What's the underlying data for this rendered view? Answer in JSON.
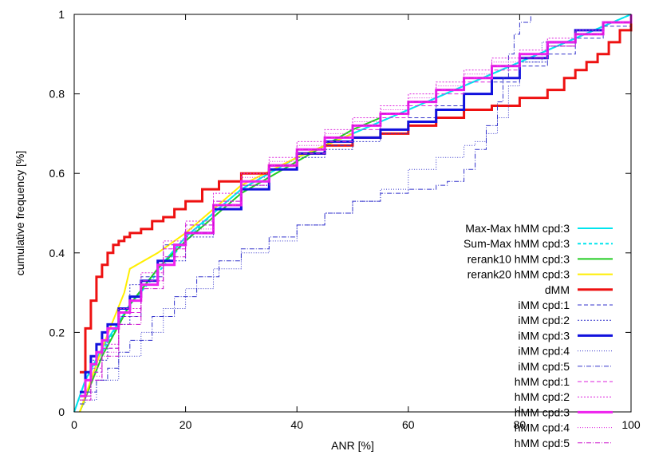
{
  "chart_data": {
    "type": "line",
    "title": "",
    "xlabel": "ANR [%]",
    "ylabel": "cumulative frequency [%]",
    "xlim": [
      0,
      100
    ],
    "ylim": [
      0,
      1
    ],
    "xticks": [
      "0",
      "20",
      "40",
      "60",
      "80",
      "100"
    ],
    "yticks": [
      "0",
      "0.2",
      "0.4",
      "0.6",
      "0.8",
      "1"
    ],
    "grid": false,
    "legend_position": "right",
    "series": [
      {
        "name": "Max-Max hMM cpd:3",
        "color": "#00e5ee",
        "dash": "",
        "width": 2,
        "x": [
          0,
          2,
          5,
          10,
          15,
          20,
          25,
          30,
          40,
          50,
          60,
          70,
          80,
          90,
          100
        ],
        "y": [
          0,
          0.08,
          0.16,
          0.27,
          0.36,
          0.44,
          0.5,
          0.56,
          0.64,
          0.7,
          0.76,
          0.82,
          0.88,
          0.94,
          1
        ]
      },
      {
        "name": "Sum-Max hMM cpd:3",
        "color": "#00e5ee",
        "dash": "4,3",
        "width": 2,
        "x": [
          0,
          2,
          5,
          10,
          15,
          20,
          25,
          30,
          40,
          50,
          60,
          70,
          80,
          90,
          100
        ],
        "y": [
          0,
          0.08,
          0.15,
          0.27,
          0.35,
          0.43,
          0.5,
          0.56,
          0.64,
          0.7,
          0.76,
          0.82,
          0.88,
          0.94,
          1
        ]
      },
      {
        "name": "rerank10 hMM cpd:3",
        "color": "#22cc22",
        "dash": "",
        "width": 2,
        "x": [
          1,
          5,
          10,
          15,
          20,
          25,
          30,
          40,
          50,
          55
        ],
        "y": [
          0,
          0.14,
          0.27,
          0.36,
          0.43,
          0.49,
          0.55,
          0.63,
          0.71,
          0.74
        ]
      },
      {
        "name": "rerank20 hMM cpd:3",
        "color": "#ffee00",
        "dash": "",
        "width": 2,
        "x": [
          1,
          5,
          9,
          10,
          15,
          20,
          25,
          30,
          40,
          50
        ],
        "y": [
          0,
          0.16,
          0.3,
          0.36,
          0.4,
          0.45,
          0.51,
          0.57,
          0.64,
          0.7
        ]
      },
      {
        "name": "dMM",
        "color": "#ee1111",
        "dash": "",
        "width": 3,
        "step": true,
        "x": [
          1,
          2,
          3,
          4,
          5,
          6,
          7,
          8,
          9,
          10,
          12,
          14,
          16,
          18,
          20,
          23,
          26,
          30,
          35,
          40,
          45,
          50,
          55,
          60,
          65,
          70,
          75,
          80,
          85,
          88,
          90,
          92,
          94,
          96,
          98,
          100
        ],
        "y": [
          0.1,
          0.21,
          0.28,
          0.34,
          0.37,
          0.4,
          0.42,
          0.43,
          0.44,
          0.45,
          0.46,
          0.48,
          0.49,
          0.51,
          0.53,
          0.56,
          0.58,
          0.6,
          0.62,
          0.65,
          0.67,
          0.69,
          0.7,
          0.72,
          0.74,
          0.76,
          0.77,
          0.79,
          0.81,
          0.84,
          0.86,
          0.88,
          0.9,
          0.93,
          0.96,
          1
        ]
      },
      {
        "name": "iMM cpd:1",
        "color": "#3333cc",
        "dash": "5,3",
        "width": 1,
        "step": true,
        "x": [
          1,
          3,
          5,
          8,
          12,
          16,
          20,
          25,
          30,
          35,
          40,
          45,
          50,
          55,
          60,
          65,
          70,
          75,
          80,
          85,
          90,
          95,
          100
        ],
        "y": [
          0.04,
          0.1,
          0.16,
          0.24,
          0.34,
          0.42,
          0.47,
          0.53,
          0.58,
          0.62,
          0.65,
          0.67,
          0.69,
          0.71,
          0.74,
          0.77,
          0.8,
          0.83,
          0.87,
          0.9,
          0.94,
          0.97,
          1
        ]
      },
      {
        "name": "iMM cpd:2",
        "color": "#3333cc",
        "dash": "2,2",
        "width": 1,
        "step": true,
        "x": [
          1,
          3,
          6,
          10,
          15,
          20,
          25,
          30,
          35,
          40,
          45,
          50,
          55,
          60,
          65,
          70,
          75,
          80,
          85,
          90,
          95,
          100
        ],
        "y": [
          0.05,
          0.13,
          0.22,
          0.32,
          0.38,
          0.44,
          0.51,
          0.57,
          0.61,
          0.64,
          0.66,
          0.68,
          0.7,
          0.73,
          0.76,
          0.8,
          0.84,
          0.88,
          0.92,
          0.96,
          0.98,
          1
        ]
      },
      {
        "name": "iMM cpd:3",
        "color": "#1111dd",
        "dash": "",
        "width": 3,
        "step": true,
        "x": [
          1,
          2,
          3,
          4,
          5,
          6,
          8,
          10,
          12,
          15,
          18,
          20,
          25,
          30,
          35,
          40,
          45,
          50,
          55,
          60,
          65,
          70,
          75,
          80,
          85,
          90,
          95,
          100
        ],
        "y": [
          0.05,
          0.1,
          0.14,
          0.17,
          0.2,
          0.22,
          0.26,
          0.29,
          0.33,
          0.38,
          0.42,
          0.45,
          0.51,
          0.56,
          0.61,
          0.65,
          0.68,
          0.69,
          0.71,
          0.73,
          0.76,
          0.8,
          0.84,
          0.89,
          0.93,
          0.96,
          0.98,
          1
        ]
      },
      {
        "name": "iMM cpd:4",
        "color": "#3333cc",
        "dash": "1,2",
        "width": 1,
        "step": true,
        "x": [
          1,
          4,
          8,
          12,
          16,
          20,
          25,
          30,
          35,
          40,
          45,
          50,
          55,
          60,
          65,
          70,
          72,
          74,
          76,
          78,
          80,
          84,
          90,
          95,
          100
        ],
        "y": [
          0.03,
          0.08,
          0.14,
          0.2,
          0.26,
          0.31,
          0.36,
          0.4,
          0.43,
          0.47,
          0.5,
          0.53,
          0.56,
          0.61,
          0.64,
          0.67,
          0.68,
          0.7,
          0.74,
          0.82,
          0.88,
          0.93,
          0.96,
          0.98,
          1
        ]
      },
      {
        "name": "iMM cpd:5",
        "color": "#3333cc",
        "dash": "6,2,1,2",
        "width": 1,
        "step": true,
        "x": [
          1,
          2,
          4,
          6,
          8,
          10,
          14,
          18,
          22,
          26,
          30,
          35,
          40,
          45,
          50,
          55,
          60,
          65,
          67,
          70,
          72,
          74,
          76,
          77,
          78,
          79,
          80,
          82,
          85,
          90,
          95,
          100
        ],
        "y": [
          0.02,
          0.05,
          0.08,
          0.11,
          0.15,
          0.18,
          0.24,
          0.29,
          0.34,
          0.38,
          0.41,
          0.44,
          0.47,
          0.5,
          0.53,
          0.55,
          0.56,
          0.57,
          0.58,
          0.61,
          0.66,
          0.72,
          0.78,
          0.84,
          0.9,
          0.95,
          0.98,
          1,
          1,
          1,
          1,
          1
        ]
      },
      {
        "name": "hMM cpd:1",
        "color": "#dd22dd",
        "dash": "5,3",
        "width": 1,
        "step": true,
        "x": [
          1,
          3,
          5,
          8,
          12,
          16,
          20,
          25,
          30,
          35,
          40,
          45,
          50,
          55,
          60,
          65,
          70,
          75,
          80,
          85,
          90,
          95,
          100
        ],
        "y": [
          0.04,
          0.1,
          0.16,
          0.25,
          0.33,
          0.41,
          0.47,
          0.53,
          0.58,
          0.62,
          0.65,
          0.68,
          0.71,
          0.74,
          0.77,
          0.8,
          0.83,
          0.86,
          0.89,
          0.92,
          0.95,
          0.98,
          1
        ]
      },
      {
        "name": "hMM cpd:2",
        "color": "#dd22dd",
        "dash": "2,2",
        "width": 1,
        "step": true,
        "x": [
          1,
          3,
          5,
          8,
          12,
          16,
          20,
          25,
          30,
          35,
          40,
          45,
          50,
          55,
          60,
          65,
          70,
          75,
          80,
          85,
          90,
          95,
          100
        ],
        "y": [
          0.04,
          0.11,
          0.17,
          0.26,
          0.35,
          0.43,
          0.48,
          0.55,
          0.6,
          0.64,
          0.68,
          0.71,
          0.74,
          0.77,
          0.8,
          0.83,
          0.86,
          0.89,
          0.91,
          0.94,
          0.96,
          0.98,
          1
        ]
      },
      {
        "name": "hMM cpd:3",
        "color": "#ee22ee",
        "dash": "",
        "width": 3,
        "step": true,
        "x": [
          1,
          2,
          3,
          4,
          5,
          6,
          8,
          10,
          12,
          15,
          18,
          20,
          25,
          30,
          35,
          40,
          45,
          50,
          55,
          60,
          65,
          70,
          75,
          80,
          85,
          90,
          95,
          100
        ],
        "y": [
          0.04,
          0.08,
          0.12,
          0.15,
          0.18,
          0.21,
          0.25,
          0.28,
          0.32,
          0.37,
          0.42,
          0.45,
          0.52,
          0.58,
          0.62,
          0.66,
          0.69,
          0.72,
          0.75,
          0.78,
          0.81,
          0.84,
          0.87,
          0.9,
          0.93,
          0.95,
          0.98,
          1
        ]
      },
      {
        "name": "hMM cpd:4",
        "color": "#dd22dd",
        "dash": "1,2",
        "width": 1,
        "step": true,
        "x": [
          1,
          3,
          5,
          8,
          12,
          16,
          20,
          25,
          30,
          35,
          40,
          45,
          50,
          55,
          60,
          65,
          70,
          75,
          80,
          85,
          90,
          95,
          100
        ],
        "y": [
          0.03,
          0.09,
          0.15,
          0.24,
          0.33,
          0.41,
          0.46,
          0.53,
          0.59,
          0.63,
          0.67,
          0.7,
          0.73,
          0.76,
          0.79,
          0.82,
          0.85,
          0.88,
          0.9,
          0.93,
          0.95,
          0.98,
          1
        ]
      },
      {
        "name": "hMM cpd:5",
        "color": "#cc11cc",
        "dash": "6,2,1,2",
        "width": 1,
        "step": true,
        "x": [
          1,
          3,
          5,
          8,
          12,
          16,
          20,
          25,
          30,
          35,
          40,
          45,
          50,
          55,
          60,
          65,
          70,
          75,
          80,
          85,
          90,
          95,
          100
        ],
        "y": [
          0.03,
          0.08,
          0.14,
          0.22,
          0.31,
          0.39,
          0.45,
          0.52,
          0.57,
          0.62,
          0.66,
          0.69,
          0.72,
          0.75,
          0.78,
          0.81,
          0.84,
          0.87,
          0.89,
          0.92,
          0.95,
          0.98,
          1
        ]
      }
    ]
  }
}
